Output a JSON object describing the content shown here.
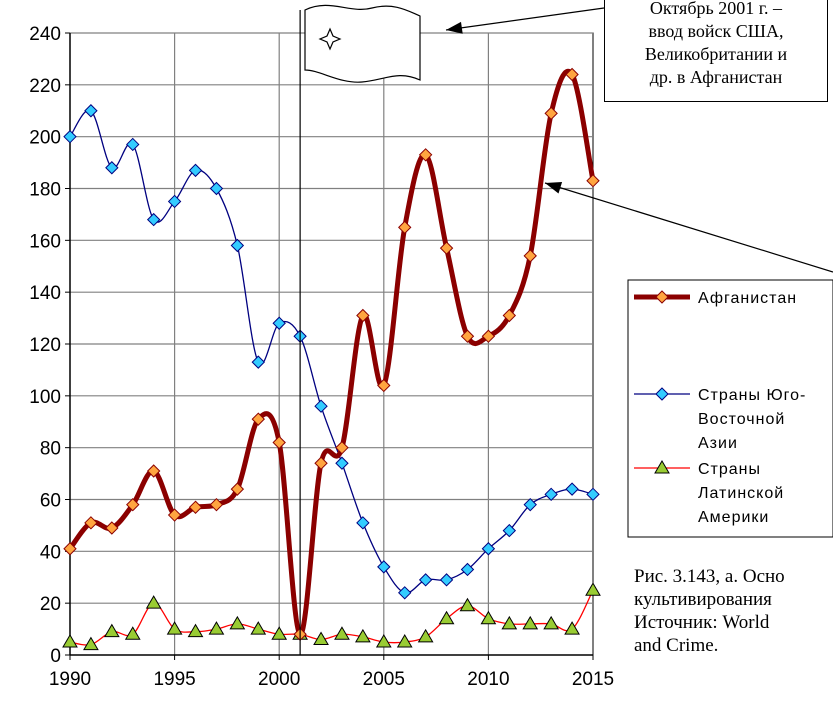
{
  "chart_data": {
    "type": "line",
    "x": [
      1990,
      1991,
      1992,
      1993,
      1994,
      1995,
      1996,
      1997,
      1998,
      1999,
      2000,
      2001,
      2002,
      2003,
      2004,
      2005,
      2006,
      2007,
      2008,
      2009,
      2010,
      2011,
      2012,
      2013,
      2014,
      2015
    ],
    "x_ticks": [
      "1990",
      "1995",
      "2000",
      "2005",
      "2010",
      "2015"
    ],
    "y_ticks": [
      "0",
      "20",
      "40",
      "60",
      "80",
      "100",
      "120",
      "140",
      "160",
      "180",
      "200",
      "220",
      "240"
    ],
    "xlim": [
      1990,
      2015
    ],
    "ylim": [
      0,
      240
    ],
    "grid": true,
    "legend_position": "right",
    "series": [
      {
        "name": "Афганистан",
        "color": "#8b0000",
        "marker": "diamond-orange",
        "values": [
          41,
          51,
          49,
          58,
          71,
          54,
          57,
          58,
          64,
          91,
          82,
          8,
          74,
          80,
          131,
          104,
          165,
          193,
          157,
          123,
          123,
          131,
          154,
          209,
          224,
          183
        ]
      },
      {
        "name": "Страны Юго-Восточной Азии",
        "color": "#000080",
        "marker": "diamond-cyan",
        "values": [
          200,
          210,
          188,
          197,
          168,
          175,
          187,
          180,
          158,
          113,
          128,
          123,
          96,
          74,
          51,
          34,
          24,
          29,
          29,
          33,
          41,
          48,
          58,
          62,
          64,
          62
        ]
      },
      {
        "name": "Страны Латинской Америки",
        "color": "#ff0000",
        "marker": "triangle-green",
        "values": [
          5,
          4,
          9,
          8,
          20,
          10,
          9,
          10,
          12,
          10,
          8,
          8,
          6,
          8,
          7,
          5,
          5,
          7,
          14,
          19,
          14,
          12,
          12,
          12,
          10,
          25
        ]
      }
    ]
  },
  "legend": {
    "items": [
      {
        "lines": [
          "Афганистан"
        ]
      },
      {
        "lines": [
          "Страны Юго-",
          "Восточной",
          "Азии"
        ]
      },
      {
        "lines": [
          "Страны",
          "Латинской",
          "Америки"
        ]
      }
    ]
  },
  "callout": {
    "text": "Октябрь 2001 г. –\nввод войск США,\nВеликобритании и\nдр. в Афганистан"
  },
  "caption": {
    "text": "Рис. 3.143, а. Осно\nкультивирования\nИсточник: World\nand Crime."
  },
  "flag": {
    "icon": "compass-star-icon"
  }
}
